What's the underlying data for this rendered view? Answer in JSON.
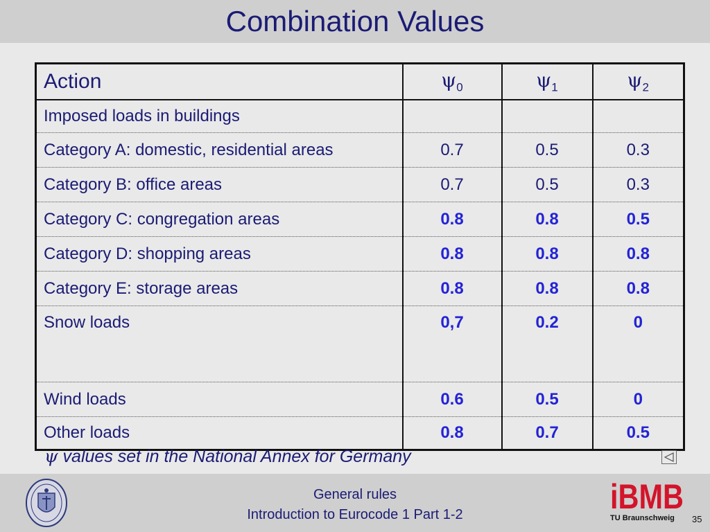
{
  "title": "Combination Values",
  "table": {
    "header": {
      "action": "Action",
      "psi_symbol": "ψ",
      "subscripts": [
        "0",
        "1",
        "2"
      ]
    },
    "rows": [
      {
        "label": "Imposed loads in buildings",
        "values": [
          "",
          "",
          ""
        ],
        "bold": false
      },
      {
        "label": "Category A: domestic, residential areas",
        "values": [
          "0.7",
          "0.5",
          "0.3"
        ],
        "bold": false
      },
      {
        "label": "Category B: office areas",
        "values": [
          "0.7",
          "0.5",
          "0.3"
        ],
        "bold": false
      },
      {
        "label": "Category C: congregation areas",
        "values": [
          "0.8",
          "0.8",
          "0.5"
        ],
        "bold": true
      },
      {
        "label": "Category D: shopping areas",
        "values": [
          "0.8",
          "0.8",
          "0.8"
        ],
        "bold": true
      },
      {
        "label": "Category E: storage areas",
        "values": [
          "0.8",
          "0.8",
          "0.8"
        ],
        "bold": true
      },
      {
        "label": "Snow loads",
        "values": [
          "0,7",
          "0.2",
          "0"
        ],
        "bold": true
      },
      {
        "label": "Wind loads",
        "values": [
          "0.6",
          "0.5",
          "0"
        ],
        "bold": true
      },
      {
        "label": "Other loads",
        "values": [
          "0.8",
          "0.7",
          "0.5"
        ],
        "bold": true
      }
    ]
  },
  "footnote": {
    "symbol": "ψ",
    "text": " values set in the National Annex for Germany"
  },
  "footer": {
    "line1": "General rules",
    "line2": "Introduction to Eurocode 1 Part 1-2",
    "logo_text": "iBMB",
    "university": "TU Braunschweig",
    "page_number": "35",
    "seal_text": "CAROLO-WILHELMINA BRAUNSCHWEIG"
  },
  "colors": {
    "title": "#1b1b75",
    "highlight": "#2323d6",
    "logo_red": "#d3142a",
    "band": "#cfcfcf",
    "background": "#e9e9e9"
  }
}
